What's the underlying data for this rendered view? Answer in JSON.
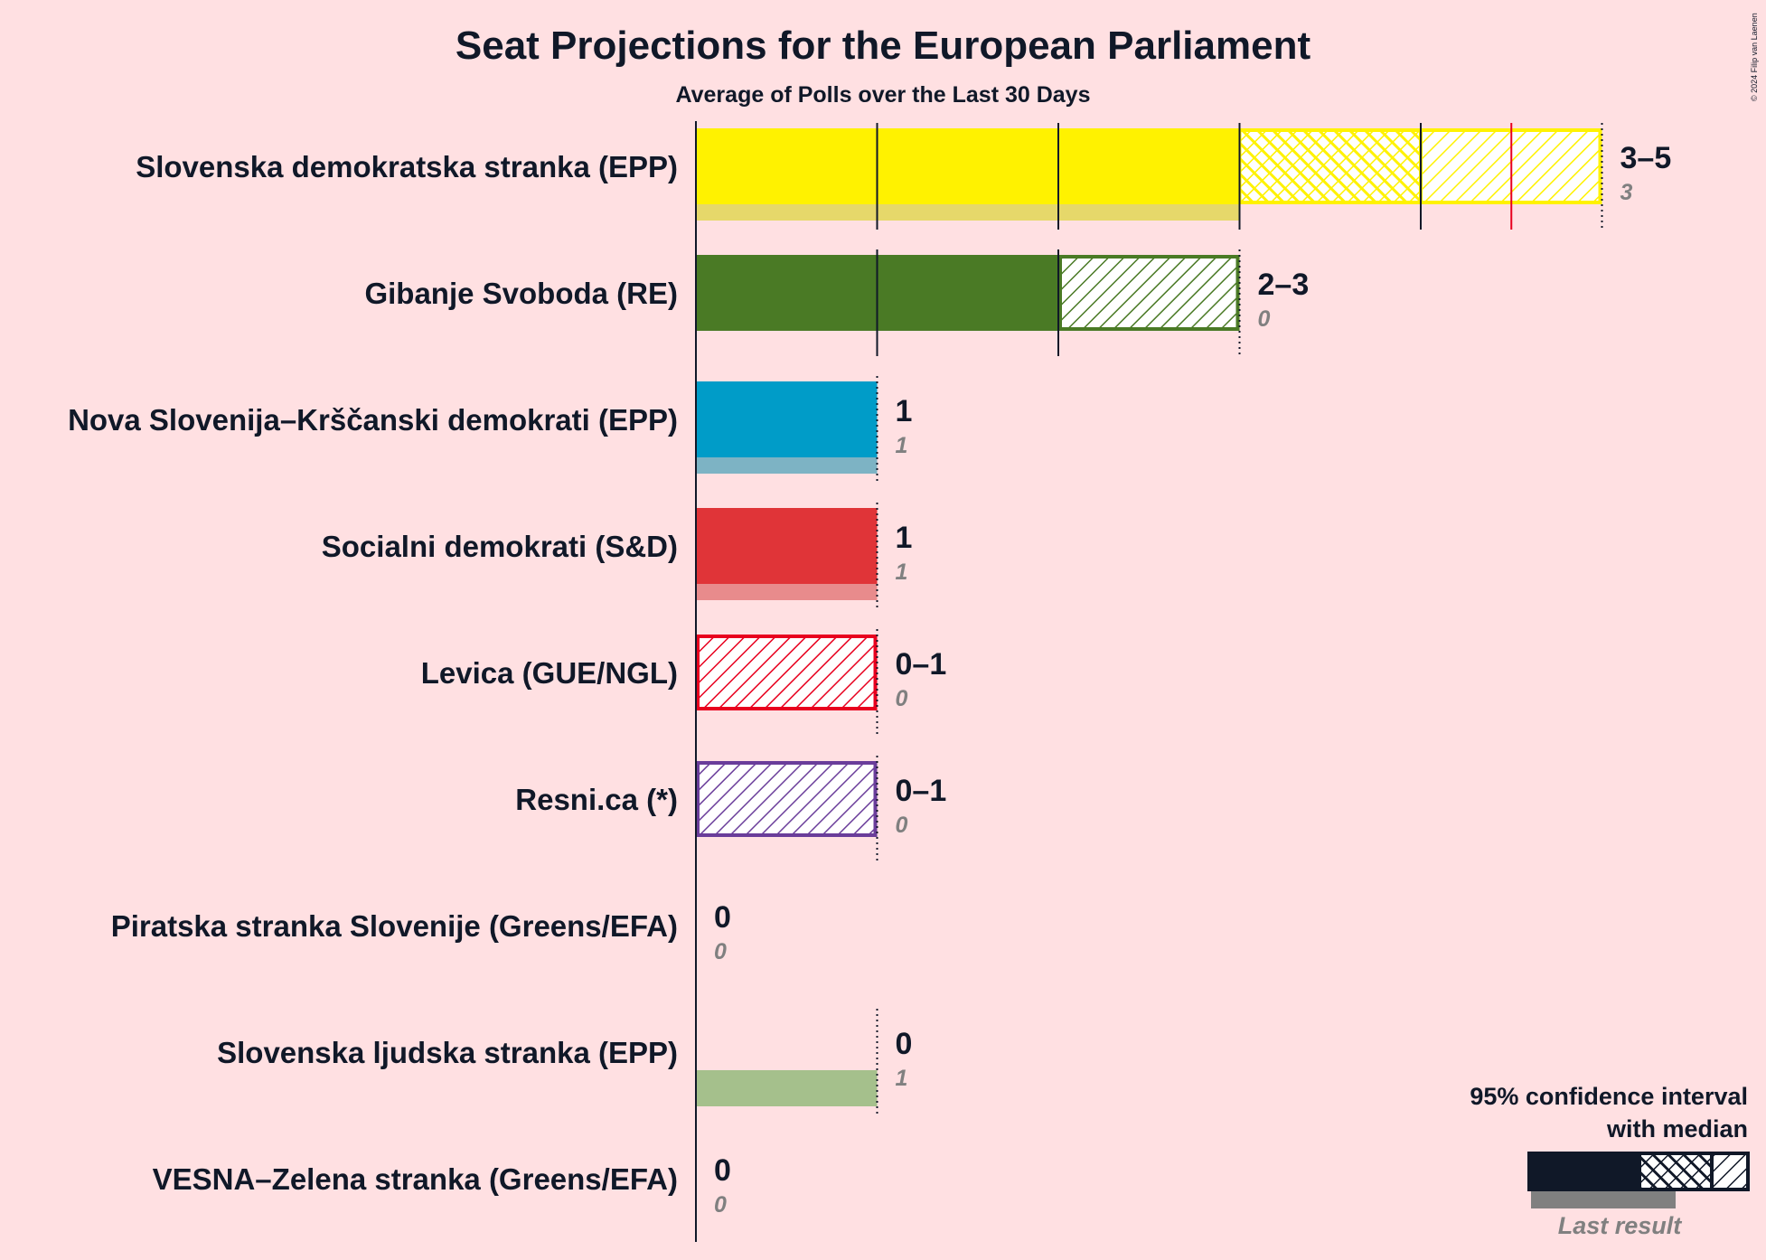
{
  "chart_data": {
    "type": "bar",
    "title": "Seat Projections for the European Parliament",
    "subtitle": "Average of Polls over the Last 30 Days",
    "copyright": "© 2024 Filip van Laenen",
    "x_range": [
      0,
      5
    ],
    "parties": [
      {
        "name": "Slovenska demokratska stranka (EPP)",
        "color": "#FFF200",
        "last_color": "#E6D86A",
        "ci_low": 3,
        "ci_high": 5,
        "median": 4,
        "range_label": "3–5",
        "last_result": 3,
        "last_label": "3"
      },
      {
        "name": "Gibanje Svoboda (RE)",
        "color": "#4A7A25",
        "last_color": "#8AA37A",
        "ci_low": 2,
        "ci_high": 3,
        "median": 2,
        "range_label": "2–3",
        "last_result": 0,
        "last_label": "0"
      },
      {
        "name": "Nova Slovenija–Krščanski demokrati (EPP)",
        "color": "#009CC8",
        "last_color": "#7DB3C4",
        "ci_low": 1,
        "ci_high": 1,
        "median": 1,
        "range_label": "1",
        "last_result": 1,
        "last_label": "1"
      },
      {
        "name": "Socialni demokrati (S&D)",
        "color": "#E03438",
        "last_color": "#E88B8C",
        "ci_low": 1,
        "ci_high": 1,
        "median": 1,
        "range_label": "1",
        "last_result": 1,
        "last_label": "1"
      },
      {
        "name": "Levica (GUE/NGL)",
        "color": "#E8001E",
        "last_color": "#E88B8C",
        "ci_low": 0,
        "ci_high": 1,
        "median": 0,
        "range_label": "0–1",
        "last_result": 0,
        "last_label": "0"
      },
      {
        "name": "Resni.ca (*)",
        "color": "#6A3D9A",
        "last_color": "#B09AC8",
        "ci_low": 0,
        "ci_high": 1,
        "median": 0,
        "range_label": "0–1",
        "last_result": 0,
        "last_label": "0"
      },
      {
        "name": "Piratska stranka Slovenije (Greens/EFA)",
        "color": "#101828",
        "last_color": "#808080",
        "ci_low": 0,
        "ci_high": 0,
        "median": 0,
        "range_label": "0",
        "last_result": 0,
        "last_label": "0"
      },
      {
        "name": "Slovenska ljudska stranka (EPP)",
        "color": "#4A9A30",
        "last_color": "#A5C08C",
        "ci_low": 0,
        "ci_high": 0,
        "median": 0,
        "range_label": "0",
        "last_result": 1,
        "last_label": "1"
      },
      {
        "name": "VESNA–Zelena stranka (Greens/EFA)",
        "color": "#6AB023",
        "last_color": "#A5C08C",
        "ci_low": 0,
        "ci_high": 0,
        "median": 0,
        "range_label": "0",
        "last_result": 0,
        "last_label": "0"
      }
    ],
    "majority_marker": 4.5,
    "legend": {
      "line1": "95% confidence interval",
      "line2": "with median",
      "last_result": "Last result"
    }
  }
}
